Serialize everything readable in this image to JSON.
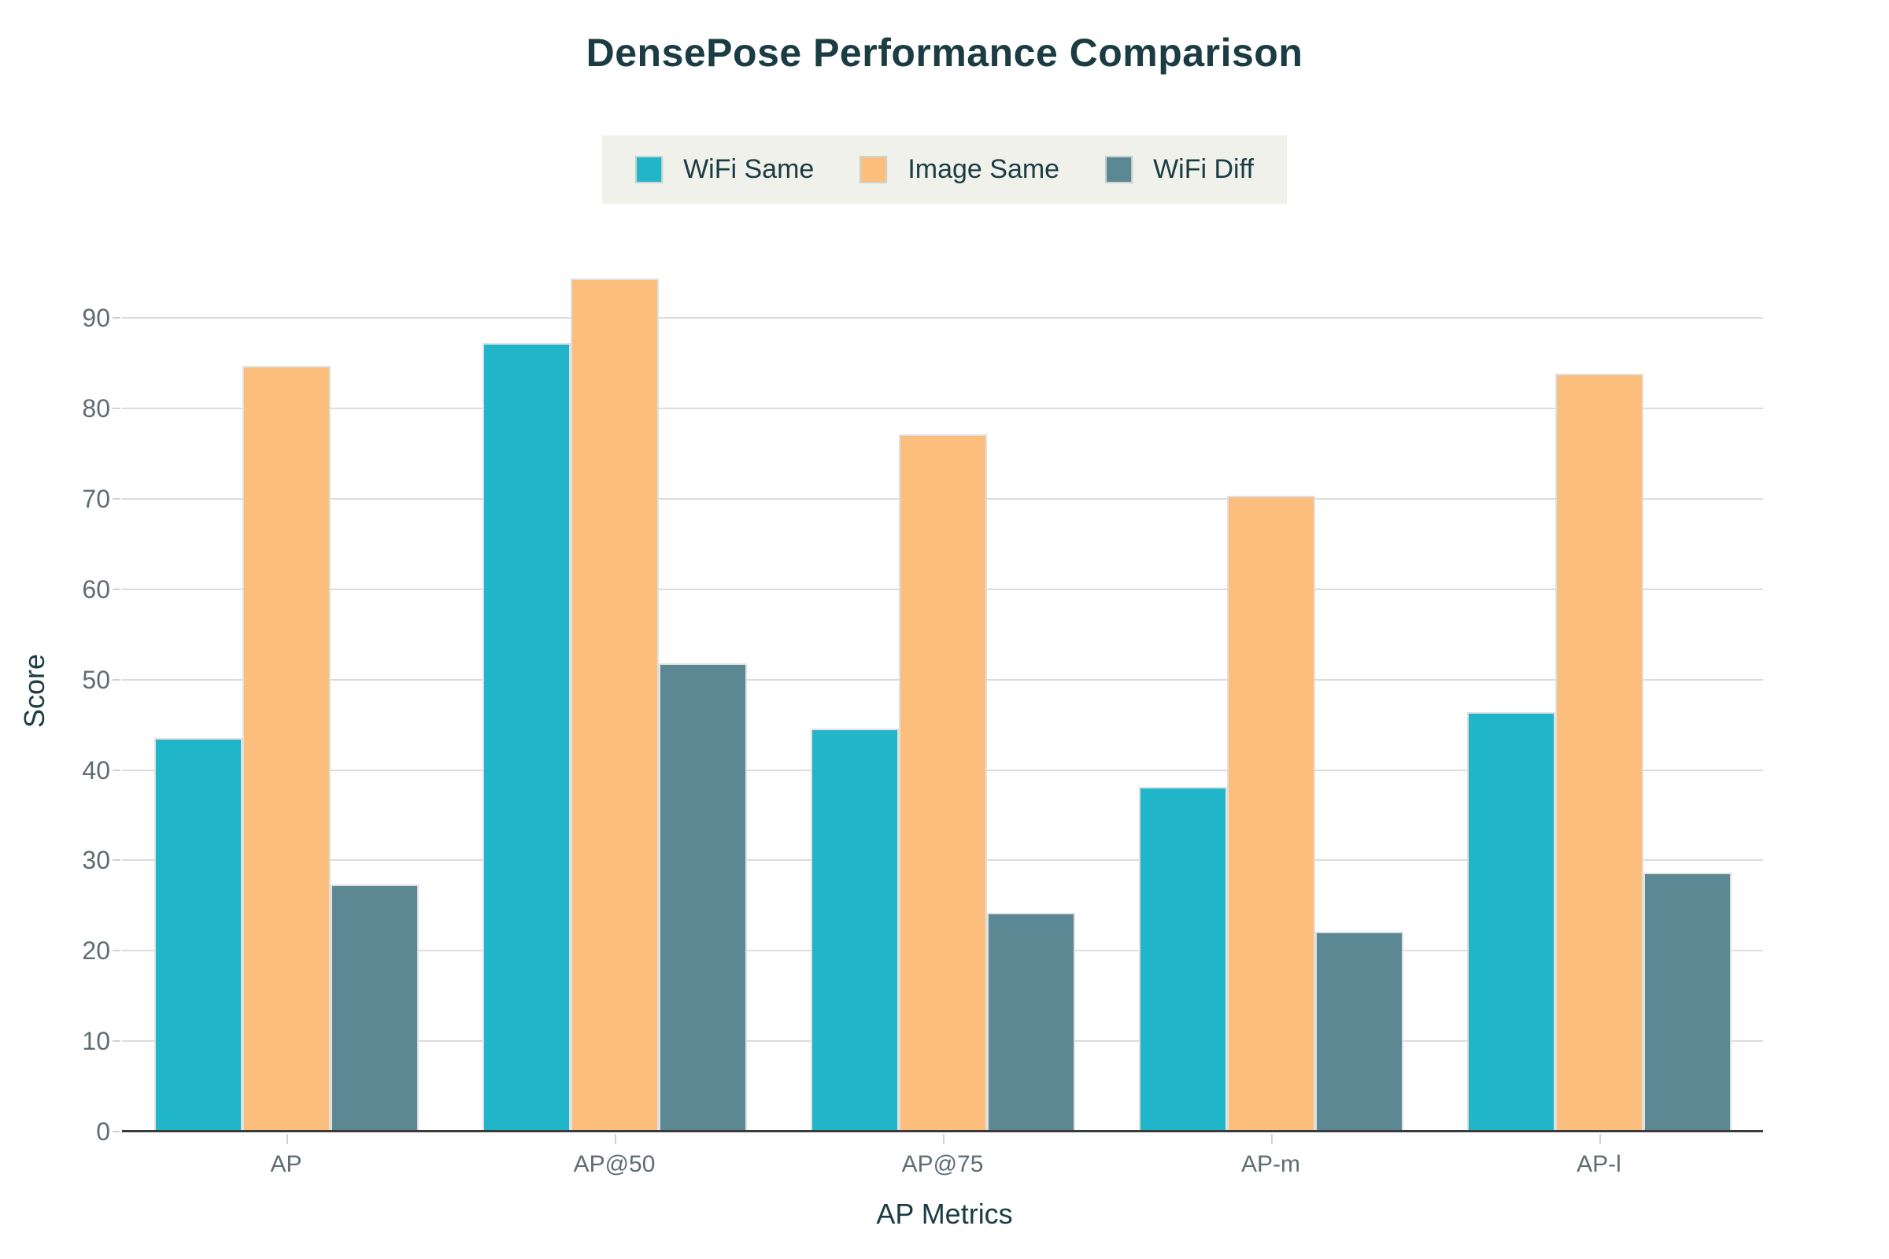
{
  "chart_data": {
    "type": "bar",
    "title": "DensePose Performance Comparison",
    "xlabel": "AP Metrics",
    "ylabel": "Score",
    "categories": [
      "AP",
      "AP@50",
      "AP@75",
      "AP-m",
      "AP-l"
    ],
    "series": [
      {
        "name": "WiFi Same",
        "color": "#21b5c9",
        "values": [
          43.5,
          87.2,
          44.6,
          38.1,
          46.4
        ]
      },
      {
        "name": "Image Same",
        "color": "#fcbe7d",
        "values": [
          84.7,
          94.4,
          77.1,
          70.3,
          83.8
        ]
      },
      {
        "name": "WiFi Diff",
        "color": "#5c8893",
        "values": [
          27.3,
          51.8,
          24.2,
          22.1,
          28.6
        ]
      }
    ],
    "ylim": [
      0,
      97.5
    ],
    "yticks": [
      0,
      10,
      20,
      30,
      40,
      50,
      60,
      70,
      80,
      90
    ],
    "grid": true,
    "legend_position": "top"
  },
  "style": {
    "text_color": "#1a3c42",
    "tick_color": "#5e6d74",
    "grid_color": "#dcdcdc",
    "dash_color": "#d8d0cb",
    "axis_color": "#3a3a3a",
    "legend_bg": "#eff1ea",
    "swatch_border": "#c9d4cf",
    "bar_border": "#e0e0e0",
    "background": "#ffffff"
  }
}
